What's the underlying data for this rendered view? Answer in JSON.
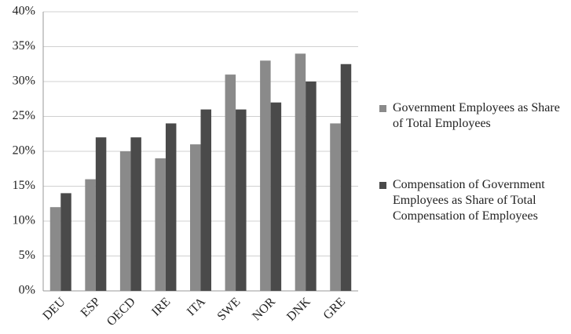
{
  "chart_data": {
    "type": "bar",
    "categories": [
      "DEU",
      "ESP",
      "OECD",
      "IRE",
      "ITA",
      "SWE",
      "NOR",
      "DNK",
      "GRE"
    ],
    "series": [
      {
        "name": "Government Employees as Share of Total Employees",
        "color": "#8a8a8a",
        "values": [
          12,
          16,
          20,
          19,
          21,
          31,
          33,
          34,
          24
        ]
      },
      {
        "name": "Compensation of Government Employees as Share of Total Compensation of Employees",
        "color": "#4a4a4a",
        "values": [
          14,
          22,
          22,
          24,
          26,
          26,
          27,
          30,
          32.5
        ]
      }
    ],
    "ylim": [
      0,
      40
    ],
    "yticks": [
      {
        "value": 0,
        "label": "0%"
      },
      {
        "value": 5,
        "label": "5%"
      },
      {
        "value": 10,
        "label": "10%"
      },
      {
        "value": 15,
        "label": "15%"
      },
      {
        "value": 20,
        "label": "20%"
      },
      {
        "value": 25,
        "label": "25%"
      },
      {
        "value": 30,
        "label": "30%"
      },
      {
        "value": 35,
        "label": "35%"
      },
      {
        "value": 40,
        "label": "40%"
      }
    ],
    "grid": true,
    "legend": "right"
  }
}
